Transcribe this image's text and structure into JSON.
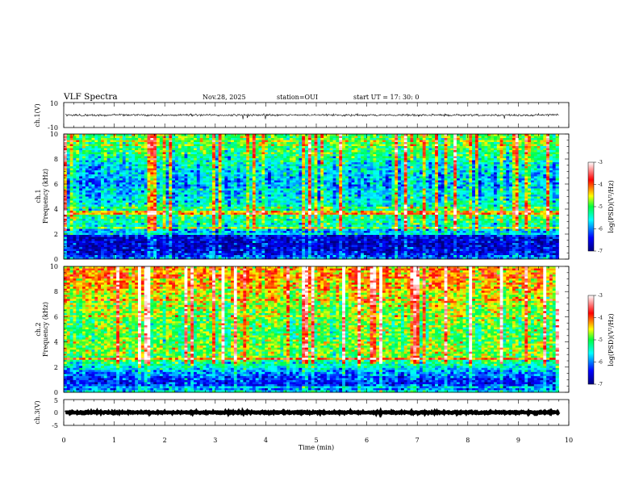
{
  "header": {
    "title": "VLF Spectra",
    "date": "Nov.28, 2025",
    "station": "station=OUI",
    "start_time": "start  UT =   17: 30: 0"
  },
  "chart_data": {
    "type": "heatmap",
    "x_axis": {
      "label": "Time (min)",
      "range": [
        0,
        10
      ],
      "ticks": [
        "0",
        "1",
        "2",
        "3",
        "4",
        "5",
        "6",
        "7",
        "8",
        "9",
        "10"
      ],
      "data_end_min": 9.8
    },
    "panels": [
      {
        "id": "ch1-waveform",
        "type": "line",
        "ylabel": "ch.1(V)",
        "ylim": [
          -10,
          10
        ],
        "tick_labels": [
          "10",
          "-10"
        ],
        "baseline": 0,
        "noise_amplitude": 1.2
      },
      {
        "id": "ch1-spectrogram",
        "type": "heatmap",
        "ylabel": "ch.1",
        "ylabel2": "Frequency (kHz)",
        "ylim": [
          0,
          10
        ],
        "tick_labels": [
          "0",
          "2",
          "4",
          "6",
          "8",
          "10"
        ],
        "profile_f_khz": [
          0,
          0.5,
          1,
          1.8,
          2.2,
          2.8,
          3.5,
          4.5,
          6,
          7.5,
          8.5,
          10
        ],
        "profile_log_psd": [
          -5.9,
          -6.5,
          -6.6,
          -6.6,
          -5.8,
          -5.3,
          -5.0,
          -5.4,
          -5.8,
          -5.5,
          -5.0,
          -4.8
        ],
        "colorbar": {
          "label": "log(PSD)(V²/Hz)",
          "range": [
            -7,
            -3
          ],
          "tick_labels": [
            "-3",
            "-4",
            "-5",
            "-6",
            "-7"
          ]
        }
      },
      {
        "id": "ch2-spectrogram",
        "type": "heatmap",
        "ylabel": "ch.2",
        "ylabel2": "Frequency (kHz)",
        "ylim": [
          0,
          10
        ],
        "tick_labels": [
          "0",
          "2",
          "4",
          "6",
          "8",
          "10"
        ],
        "profile_f_khz": [
          0,
          0.3,
          0.8,
          1.5,
          2.2,
          2.8,
          3.5,
          4.5,
          6,
          7.5,
          8.5,
          10
        ],
        "profile_log_psd": [
          -5.3,
          -6.2,
          -6.4,
          -6.0,
          -5.3,
          -4.8,
          -4.7,
          -4.9,
          -4.8,
          -4.5,
          -4.3,
          -4.2
        ],
        "colorbar": {
          "label": "log(PSD)(V²/Hz)",
          "range": [
            -7,
            -3
          ],
          "tick_labels": [
            "-3",
            "-4",
            "-5",
            "-6",
            "-7"
          ]
        }
      },
      {
        "id": "ch3-waveform",
        "type": "line",
        "ylabel": "ch.3(V)",
        "ylim": [
          -5,
          5
        ],
        "tick_labels": [
          "5",
          "0",
          "-5"
        ],
        "baseline": 0,
        "noise_amplitude": 0.4
      }
    ]
  }
}
